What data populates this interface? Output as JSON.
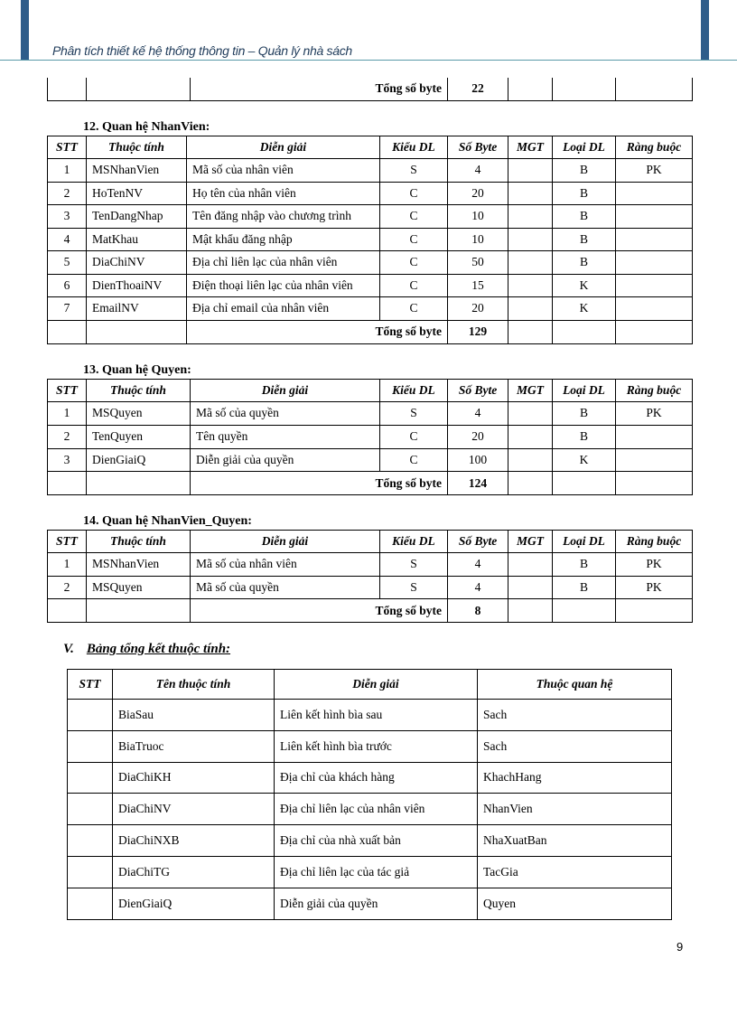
{
  "header": {
    "title": "Phân tích thiết kế hệ thống thông tin – Quản lý nhà sách",
    "accent": "#2f5d8a"
  },
  "prev_table": {
    "total_label": "Tổng số byte",
    "total": "22"
  },
  "columns": [
    "STT",
    "Thuộc tính",
    "Diễn giải",
    "Kiểu DL",
    "Số Byte",
    "MGT",
    "Loại DL",
    "Ràng buộc"
  ],
  "relations": [
    {
      "title": "12. Quan hệ NhanVien:",
      "total_label": "Tổng số byte",
      "total": "129",
      "rows": [
        [
          "1",
          "MSNhanVien",
          "Mã số của nhân viên",
          "S",
          "4",
          "",
          "B",
          "PK"
        ],
        [
          "2",
          "HoTenNV",
          "Họ tên của nhân viên",
          "C",
          "20",
          "",
          "B",
          ""
        ],
        [
          "3",
          "TenDangNhap",
          "Tên đăng nhập vào chương trình",
          "C",
          "10",
          "",
          "B",
          ""
        ],
        [
          "4",
          "MatKhau",
          "Mật khẩu đăng nhập",
          "C",
          "10",
          "",
          "B",
          ""
        ],
        [
          "5",
          "DiaChiNV",
          "Địa chỉ liên lạc của nhân viên",
          "C",
          "50",
          "",
          "B",
          ""
        ],
        [
          "6",
          "DienThoaiNV",
          "Điện thoại liên lạc của nhân viên",
          "C",
          "15",
          "",
          "K",
          ""
        ],
        [
          "7",
          "EmailNV",
          "Địa chỉ email của nhân viên",
          "C",
          "20",
          "",
          "K",
          ""
        ]
      ]
    },
    {
      "title": "13. Quan hệ Quyen:",
      "total_label": "Tổng số byte",
      "total": "124",
      "rows": [
        [
          "1",
          "MSQuyen",
          "Mã số của quyền",
          "S",
          "4",
          "",
          "B",
          "PK"
        ],
        [
          "2",
          "TenQuyen",
          "Tên quyền",
          "C",
          "20",
          "",
          "B",
          ""
        ],
        [
          "3",
          "DienGiaiQ",
          "Diễn giải của quyền",
          "C",
          "100",
          "",
          "K",
          ""
        ]
      ]
    },
    {
      "title": "14. Quan hệ NhanVien_Quyen:",
      "total_label": "Tổng số byte",
      "total": "8",
      "rows": [
        [
          "1",
          "MSNhanVien",
          "Mã số của nhân viên",
          "S",
          "4",
          "",
          "B",
          "PK"
        ],
        [
          "2",
          "MSQuyen",
          "Mã số của quyền",
          "S",
          "4",
          "",
          "B",
          "PK"
        ]
      ]
    }
  ],
  "summary": {
    "numeral": "V.",
    "title": "Bảng tổng kết thuộc tính:",
    "columns": [
      "STT",
      "Tên thuộc tính",
      "Diễn giải",
      "Thuộc quan hệ"
    ],
    "rows": [
      [
        "",
        "BiaSau",
        "Liên kết hình bìa sau",
        "Sach"
      ],
      [
        "",
        "BiaTruoc",
        "Liên kết hình bìa trước",
        "Sach"
      ],
      [
        "",
        "DiaChiKH",
        "Địa chỉ của khách hàng",
        "KhachHang"
      ],
      [
        "",
        "DiaChiNV",
        "Địa chỉ liên lạc của nhân viên",
        "NhanVien"
      ],
      [
        "",
        "DiaChiNXB",
        "Địa chỉ của nhà xuất bản",
        "NhaXuatBan"
      ],
      [
        "",
        "DiaChiTG",
        "Địa chỉ liên lạc của tác giả",
        "TacGia"
      ],
      [
        "",
        "DienGiaiQ",
        "Diễn giải của quyền",
        "Quyen"
      ]
    ]
  },
  "page_number": "9"
}
